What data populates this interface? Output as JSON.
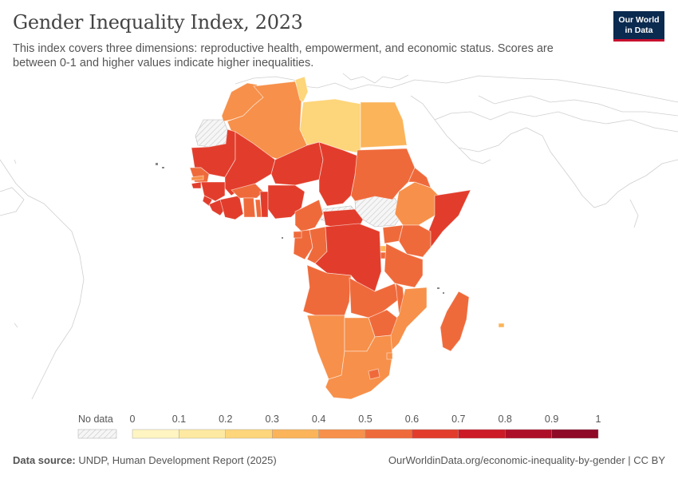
{
  "title": "Gender Inequality Index, 2023",
  "subtitle": "This index covers three dimensions: reproductive health, empowerment, and economic status. Scores are between 0-1 and higher values indicate higher inequalities.",
  "logo": {
    "line1": "Our World",
    "line2": "in Data"
  },
  "legend": {
    "no_data_label": "No data",
    "ticks": [
      "0",
      "0.1",
      "0.2",
      "0.3",
      "0.4",
      "0.5",
      "0.6",
      "0.7",
      "0.8",
      "0.9",
      "1"
    ],
    "colors": [
      "#fff5c2",
      "#fde9a1",
      "#fdd57a",
      "#fbb45a",
      "#f7904a",
      "#ef6a3b",
      "#e23d2c",
      "#cc1a26",
      "#ae0f28",
      "#8e0a26",
      "#6a0622"
    ]
  },
  "footer": {
    "source_label": "Data source:",
    "source_text": "UNDP, Human Development Report (2025)",
    "url_text": "OurWorldinData.org/economic-inequality-by-gender | CC BY"
  },
  "regions": [
    {
      "name": "Morocco",
      "value": 0.44
    },
    {
      "name": "Algeria",
      "value": 0.46
    },
    {
      "name": "Tunisia",
      "value": 0.24
    },
    {
      "name": "Libya",
      "value": 0.26
    },
    {
      "name": "Egypt",
      "value": 0.39
    },
    {
      "name": "Mauritania",
      "value": 0.62
    },
    {
      "name": "Mali",
      "value": 0.61
    },
    {
      "name": "Niger",
      "value": 0.61
    },
    {
      "name": "Chad",
      "value": 0.65
    },
    {
      "name": "Sudan",
      "value": 0.55
    },
    {
      "name": "Senegal",
      "value": 0.51
    },
    {
      "name": "Gambia",
      "value": 0.47
    },
    {
      "name": "Guinea-Bissau",
      "value": 0.63
    },
    {
      "name": "Guinea",
      "value": 0.6
    },
    {
      "name": "Sierra Leone",
      "value": 0.61
    },
    {
      "name": "Liberia",
      "value": 0.64
    },
    {
      "name": "Ivory Coast",
      "value": 0.6
    },
    {
      "name": "Burkina Faso",
      "value": 0.58
    },
    {
      "name": "Ghana",
      "value": 0.52
    },
    {
      "name": "Togo",
      "value": 0.57
    },
    {
      "name": "Benin",
      "value": 0.6
    },
    {
      "name": "Nigeria",
      "value": 0.68
    },
    {
      "name": "Cameroon",
      "value": 0.56
    },
    {
      "name": "Central African Republic",
      "value": 0.67
    },
    {
      "name": "Ethiopia",
      "value": 0.49
    },
    {
      "name": "Eritrea",
      "value": 0.55
    },
    {
      "name": "Somalia",
      "value": 0.67
    },
    {
      "name": "Kenya",
      "value": 0.53
    },
    {
      "name": "Uganda",
      "value": 0.53
    },
    {
      "name": "Rwanda",
      "value": 0.39
    },
    {
      "name": "Burundi",
      "value": 0.5
    },
    {
      "name": "Tanzania",
      "value": 0.51
    },
    {
      "name": "Gabon",
      "value": 0.54
    },
    {
      "name": "Republic of the Congo",
      "value": 0.57
    },
    {
      "name": "DR Congo",
      "value": 0.6
    },
    {
      "name": "Equatorial Guinea",
      "value": 0.56
    },
    {
      "name": "Angola",
      "value": 0.52
    },
    {
      "name": "Zambia",
      "value": 0.54
    },
    {
      "name": "Malawi",
      "value": 0.55
    },
    {
      "name": "Mozambique",
      "value": 0.49
    },
    {
      "name": "Zimbabwe",
      "value": 0.53
    },
    {
      "name": "Namibia",
      "value": 0.42
    },
    {
      "name": "Botswana",
      "value": 0.47
    },
    {
      "name": "South Africa",
      "value": 0.4
    },
    {
      "name": "Lesotho",
      "value": 0.54
    },
    {
      "name": "Eswatini",
      "value": 0.49
    },
    {
      "name": "Madagascar",
      "value": 0.55
    },
    {
      "name": "Mauritius",
      "value": 0.37
    }
  ]
}
